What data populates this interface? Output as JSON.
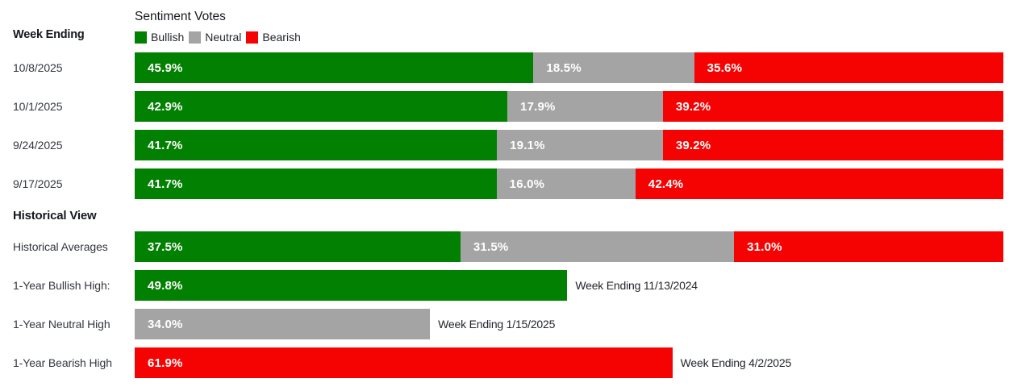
{
  "header": {
    "week_ending_label": "Week Ending",
    "title": "Sentiment Votes"
  },
  "legend": {
    "bullish": "Bullish",
    "neutral": "Neutral",
    "bearish": "Bearish"
  },
  "colors": {
    "bullish": "#028002",
    "neutral": "#a4a4a4",
    "bearish": "#f50303",
    "heading_text": "#15181e",
    "label_text": "#33373d"
  },
  "weeks": [
    {
      "date": "10/8/2025",
      "bullish": {
        "value": 45.9,
        "label": "45.9%"
      },
      "neutral": {
        "value": 18.5,
        "label": "18.5%"
      },
      "bearish": {
        "value": 35.6,
        "label": "35.6%"
      }
    },
    {
      "date": "10/1/2025",
      "bullish": {
        "value": 42.9,
        "label": "42.9%"
      },
      "neutral": {
        "value": 17.9,
        "label": "17.9%"
      },
      "bearish": {
        "value": 39.2,
        "label": "39.2%"
      }
    },
    {
      "date": "9/24/2025",
      "bullish": {
        "value": 41.7,
        "label": "41.7%"
      },
      "neutral": {
        "value": 19.1,
        "label": "19.1%"
      },
      "bearish": {
        "value": 39.2,
        "label": "39.2%"
      }
    },
    {
      "date": "9/17/2025",
      "bullish": {
        "value": 41.7,
        "label": "41.7%"
      },
      "neutral": {
        "value": 16.0,
        "label": "16.0%"
      },
      "bearish": {
        "value": 42.4,
        "label": "42.4%"
      }
    }
  ],
  "historical": {
    "heading": "Historical View",
    "averages": {
      "label": "Historical Averages",
      "bullish": {
        "value": 37.5,
        "label": "37.5%"
      },
      "neutral": {
        "value": 31.5,
        "label": "31.5%"
      },
      "bearish": {
        "value": 31.0,
        "label": "31.0%"
      }
    },
    "highs": [
      {
        "label": "1-Year Bullish High:",
        "value": 49.8,
        "value_label": "49.8%",
        "annotation": "Week Ending 11/13/2024"
      },
      {
        "label": "1-Year Neutral High",
        "value": 34.0,
        "value_label": "34.0%",
        "annotation": "Week Ending 1/15/2025"
      },
      {
        "label": "1-Year Bearish High",
        "value": 61.9,
        "value_label": "61.9%",
        "annotation": "Week Ending 4/2/2025"
      }
    ]
  },
  "chart_data": {
    "type": "bar",
    "subtype": "horizontal-stacked-100pct",
    "title": "Sentiment Votes",
    "xlabel": "",
    "ylabel": "Week Ending",
    "xlim": [
      0,
      100
    ],
    "unit": "%",
    "grid": false,
    "legend_position": "top",
    "legend": [
      "Bullish",
      "Neutral",
      "Bearish"
    ],
    "categories": [
      "10/8/2025",
      "10/1/2025",
      "9/24/2025",
      "9/17/2025"
    ],
    "series": [
      {
        "name": "Bullish",
        "color": "#028002",
        "values": [
          45.9,
          42.9,
          41.7,
          41.7
        ]
      },
      {
        "name": "Neutral",
        "color": "#a4a4a4",
        "values": [
          18.5,
          17.9,
          19.1,
          16.0
        ]
      },
      {
        "name": "Bearish",
        "color": "#f50303",
        "values": [
          35.6,
          39.2,
          39.2,
          42.4
        ]
      }
    ],
    "historical_view": {
      "historical_averages": {
        "Bullish": 37.5,
        "Neutral": 31.5,
        "Bearish": 31.0
      },
      "one_year_bullish_high": {
        "value": 49.8,
        "week_ending": "11/13/2024"
      },
      "one_year_neutral_high": {
        "value": 34.0,
        "week_ending": "1/15/2025"
      },
      "one_year_bearish_high": {
        "value": 61.9,
        "week_ending": "4/2/2025"
      }
    }
  }
}
